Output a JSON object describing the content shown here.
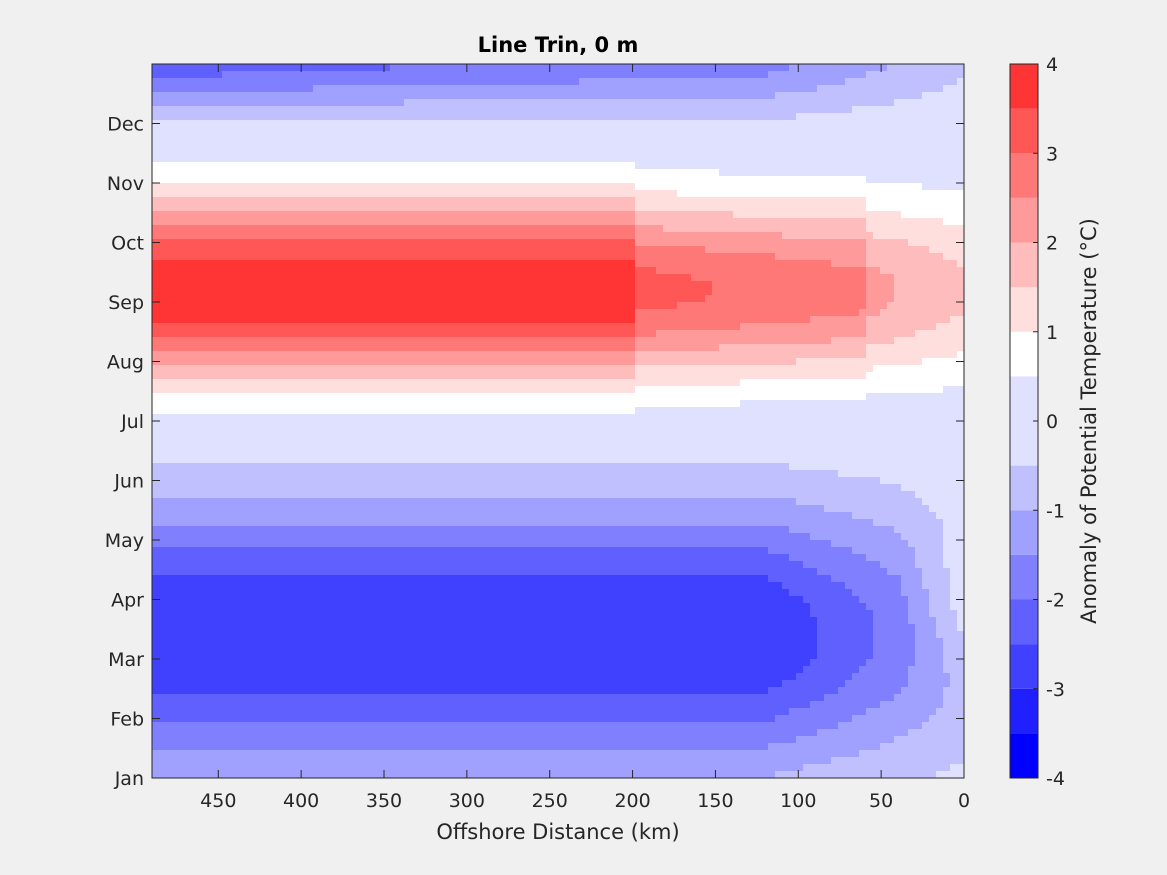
{
  "chart_data": {
    "type": "contour",
    "title": "Line Trin, 0 m",
    "xlabel": "Offshore Distance (km)",
    "colorbar_label": "Anomaly of Potential Temperature (°C)",
    "x_ticks": [
      "450",
      "400",
      "350",
      "300",
      "250",
      "200",
      "150",
      "100",
      "50",
      "0"
    ],
    "x_values": [
      450,
      400,
      350,
      300,
      250,
      200,
      150,
      100,
      50,
      0
    ],
    "xlim": [
      490,
      0
    ],
    "y_ticks": [
      "Jan",
      "Feb",
      "Mar",
      "Apr",
      "May",
      "Jun",
      "Jul",
      "Aug",
      "Sep",
      "Oct",
      "Nov",
      "Dec"
    ],
    "y_values": [
      1,
      2,
      3,
      4,
      5,
      6,
      7,
      8,
      9,
      10,
      11,
      12
    ],
    "ylim": [
      1,
      13
    ],
    "colorbar_ticks": [
      "4",
      "3",
      "2",
      "1",
      "0",
      "-1",
      "-2",
      "-3",
      "-4"
    ],
    "colorbar_values": [
      4,
      3,
      2,
      1,
      0,
      -1,
      -2,
      -3,
      -4
    ],
    "clim": [
      -4,
      4
    ],
    "levels": [
      -4,
      -3.5,
      -3,
      -2.5,
      -2,
      -1.5,
      -1,
      -0.5,
      0.5,
      1,
      1.5,
      2,
      2.5,
      3,
      3.5,
      4
    ],
    "colors": [
      "#0000ff",
      "#2020ff",
      "#4040ff",
      "#6060ff",
      "#8080ff",
      "#a0a0ff",
      "#c0c0ff",
      "#e0e0ff",
      "#ffffff",
      "#ffdede",
      "#ffbcbc",
      "#ff9a9a",
      "#ff7878",
      "#ff5656",
      "#ff3434",
      "#ff0000"
    ],
    "zero_contour": true
  }
}
